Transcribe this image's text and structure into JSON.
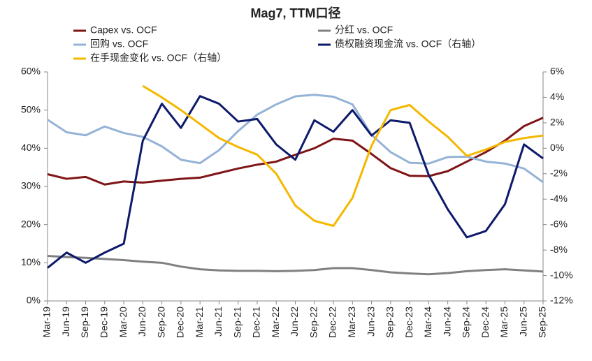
{
  "chart_data": {
    "type": "line",
    "title": "Mag7, TTM口径",
    "categories": [
      "Mar-19",
      "Jun-19",
      "Sep-19",
      "Dec-19",
      "Mar-20",
      "Jun-20",
      "Sep-20",
      "Dec-20",
      "Mar-21",
      "Jun-21",
      "Sep-21",
      "Dec-21",
      "Mar-22",
      "Jun-22",
      "Sep-22",
      "Dec-22",
      "Mar-23",
      "Jun-23",
      "Sep-23",
      "Dec-23",
      "Mar-24",
      "Jun-24",
      "Sep-24",
      "Dec-24",
      "Mar-25",
      "Jun-25",
      "Sep-25"
    ],
    "series": [
      {
        "name": "Capex vs. OCF",
        "color": "#7f1416",
        "values": [
          33.2,
          32,
          32.5,
          30.5,
          31.3,
          31,
          31.5,
          32,
          32.3,
          33.5,
          34.7,
          35.7,
          36.5,
          38.3,
          40,
          42.5,
          42,
          38.5,
          34.8,
          32.8,
          32.7,
          34,
          36.5,
          39,
          42,
          45.8,
          48
        ]
      },
      {
        "name": "分红 vs. OCF",
        "color": "#808080",
        "values": [
          11.8,
          11.5,
          11.3,
          11,
          10.7,
          10.3,
          10,
          9,
          8.3,
          8,
          7.9,
          7.9,
          7.8,
          7.9,
          8.1,
          8.6,
          8.6,
          8.1,
          7.5,
          7.2,
          7,
          7.3,
          7.8,
          8.1,
          8.3,
          8,
          7.7
        ]
      },
      {
        "name": "回购 vs. OCF",
        "color": "#95b3d7",
        "values": [
          47.5,
          44.2,
          43.4,
          45.7,
          44,
          43,
          40.5,
          37,
          36.1,
          39.5,
          44.5,
          48.8,
          51.5,
          53.6,
          54,
          53.5,
          51.5,
          43.5,
          39,
          36.2,
          36,
          37.7,
          37.8,
          36.5,
          36,
          34.7,
          31.1
        ]
      },
      {
        "name": "债权融资现金流 vs. OCF（右轴）",
        "color": "#0d1a6b",
        "axis": "y2",
        "values": [
          -9.4,
          -8.2,
          -9.0,
          -8.2,
          -7.5,
          0.6,
          3.5,
          1.6,
          4.1,
          3.5,
          2.1,
          2.3,
          0.3,
          -0.9,
          2.2,
          1.3,
          3.0,
          1.0,
          2.2,
          2.0,
          -2.1,
          -4.8,
          -7.0,
          -6.5,
          -4.4,
          0.3,
          -0.8
        ]
      },
      {
        "name": "在手现金变化 vs. OCF（右轴）",
        "color": "#f5b800",
        "axis": "y2",
        "values": [
          null,
          null,
          null,
          null,
          null,
          4.9,
          4.0,
          3.0,
          1.9,
          0.8,
          0.1,
          -0.5,
          -2.0,
          -4.5,
          -5.7,
          -6.1,
          -3.9,
          0.2,
          3.0,
          3.4,
          2.1,
          0.9,
          -0.6,
          -0.1,
          0.5,
          0.8,
          1.0
        ]
      }
    ],
    "ylim": [
      0,
      60
    ],
    "yticks": [
      {
        "value": 0,
        "label": "0%"
      },
      {
        "value": 10,
        "label": "10%"
      },
      {
        "value": 20,
        "label": "20%"
      },
      {
        "value": 30,
        "label": "30%"
      },
      {
        "value": 40,
        "label": "40%"
      },
      {
        "value": 50,
        "label": "50%"
      },
      {
        "value": 60,
        "label": "60%"
      }
    ],
    "y2lim": [
      -12,
      6
    ],
    "y2ticks": [
      {
        "value": -12,
        "label": "-12%"
      },
      {
        "value": -10,
        "label": "-10%"
      },
      {
        "value": -8,
        "label": "-8%"
      },
      {
        "value": -6,
        "label": "-6%"
      },
      {
        "value": -4,
        "label": "-4%"
      },
      {
        "value": -2,
        "label": "-2%"
      },
      {
        "value": 0,
        "label": "0%"
      },
      {
        "value": 2,
        "label": "2%"
      },
      {
        "value": 4,
        "label": "4%"
      },
      {
        "value": 6,
        "label": "6%"
      }
    ],
    "grid": false
  }
}
